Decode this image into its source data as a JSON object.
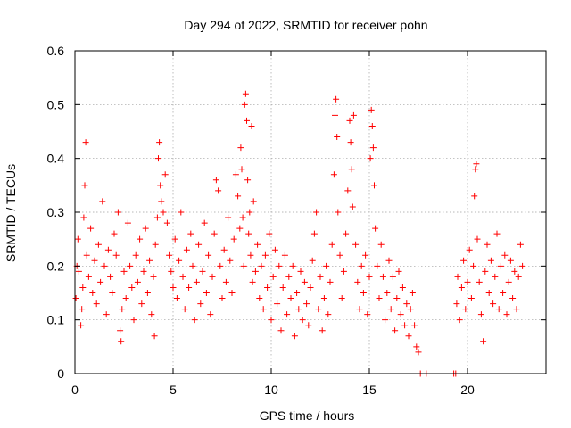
{
  "chart_data": {
    "type": "scatter",
    "title": "Day 294 of 2022, SRMTID for receiver pohn",
    "xlabel": "GPS time / hours",
    "ylabel": "SRMTID / TECUs",
    "xlim": [
      0,
      24
    ],
    "ylim": [
      0,
      0.6
    ],
    "x_ticks": [
      0,
      5,
      10,
      15,
      20
    ],
    "x_tick_labels": [
      "0",
      "5",
      "10",
      "15",
      "20"
    ],
    "y_ticks": [
      0,
      0.1,
      0.2,
      0.3,
      0.4,
      0.5,
      0.6
    ],
    "y_tick_labels": [
      "0",
      "0.1",
      "0.2",
      "0.3",
      "0.4",
      "0.5",
      "0.6"
    ],
    "grid": true,
    "legend": "none",
    "marker": "+",
    "color": "#ff0000",
    "series": [
      {
        "name": "SRMTID",
        "points": [
          [
            0.05,
            0.14
          ],
          [
            0.1,
            0.2
          ],
          [
            0.15,
            0.25
          ],
          [
            0.2,
            0.19
          ],
          [
            0.3,
            0.09
          ],
          [
            0.35,
            0.12
          ],
          [
            0.4,
            0.16
          ],
          [
            0.45,
            0.29
          ],
          [
            0.5,
            0.35
          ],
          [
            0.55,
            0.43
          ],
          [
            0.6,
            0.22
          ],
          [
            0.7,
            0.18
          ],
          [
            0.8,
            0.27
          ],
          [
            0.9,
            0.15
          ],
          [
            1.0,
            0.21
          ],
          [
            1.1,
            0.13
          ],
          [
            1.2,
            0.24
          ],
          [
            1.3,
            0.17
          ],
          [
            1.4,
            0.32
          ],
          [
            1.5,
            0.2
          ],
          [
            1.6,
            0.11
          ],
          [
            1.7,
            0.23
          ],
          [
            1.8,
            0.18
          ],
          [
            1.9,
            0.15
          ],
          [
            2.0,
            0.26
          ],
          [
            2.1,
            0.22
          ],
          [
            2.2,
            0.3
          ],
          [
            2.3,
            0.08
          ],
          [
            2.35,
            0.06
          ],
          [
            2.4,
            0.12
          ],
          [
            2.5,
            0.19
          ],
          [
            2.6,
            0.14
          ],
          [
            2.7,
            0.28
          ],
          [
            2.8,
            0.2
          ],
          [
            2.9,
            0.16
          ],
          [
            3.0,
            0.1
          ],
          [
            3.1,
            0.22
          ],
          [
            3.2,
            0.17
          ],
          [
            3.3,
            0.25
          ],
          [
            3.4,
            0.13
          ],
          [
            3.5,
            0.19
          ],
          [
            3.6,
            0.27
          ],
          [
            3.7,
            0.15
          ],
          [
            3.8,
            0.21
          ],
          [
            3.9,
            0.11
          ],
          [
            4.0,
            0.18
          ],
          [
            4.05,
            0.07
          ],
          [
            4.1,
            0.24
          ],
          [
            4.2,
            0.29
          ],
          [
            4.25,
            0.4
          ],
          [
            4.3,
            0.43
          ],
          [
            4.35,
            0.35
          ],
          [
            4.4,
            0.32
          ],
          [
            4.5,
            0.3
          ],
          [
            4.6,
            0.37
          ],
          [
            4.7,
            0.28
          ],
          [
            4.8,
            0.22
          ],
          [
            4.9,
            0.19
          ],
          [
            5.0,
            0.16
          ],
          [
            5.1,
            0.25
          ],
          [
            5.2,
            0.14
          ],
          [
            5.3,
            0.21
          ],
          [
            5.4,
            0.3
          ],
          [
            5.5,
            0.18
          ],
          [
            5.6,
            0.12
          ],
          [
            5.7,
            0.23
          ],
          [
            5.8,
            0.16
          ],
          [
            5.9,
            0.26
          ],
          [
            6.0,
            0.2
          ],
          [
            6.1,
            0.1
          ],
          [
            6.2,
            0.17
          ],
          [
            6.3,
            0.24
          ],
          [
            6.4,
            0.13
          ],
          [
            6.5,
            0.19
          ],
          [
            6.6,
            0.28
          ],
          [
            6.7,
            0.15
          ],
          [
            6.8,
            0.22
          ],
          [
            6.9,
            0.11
          ],
          [
            7.0,
            0.18
          ],
          [
            7.1,
            0.26
          ],
          [
            7.2,
            0.36
          ],
          [
            7.3,
            0.34
          ],
          [
            7.4,
            0.2
          ],
          [
            7.5,
            0.14
          ],
          [
            7.6,
            0.23
          ],
          [
            7.7,
            0.17
          ],
          [
            7.8,
            0.29
          ],
          [
            7.9,
            0.21
          ],
          [
            8.0,
            0.15
          ],
          [
            8.1,
            0.25
          ],
          [
            8.2,
            0.37
          ],
          [
            8.3,
            0.33
          ],
          [
            8.4,
            0.27
          ],
          [
            8.45,
            0.42
          ],
          [
            8.5,
            0.38
          ],
          [
            8.55,
            0.29
          ],
          [
            8.6,
            0.2
          ],
          [
            8.65,
            0.5
          ],
          [
            8.7,
            0.52
          ],
          [
            8.75,
            0.47
          ],
          [
            8.8,
            0.36
          ],
          [
            8.85,
            0.26
          ],
          [
            8.9,
            0.3
          ],
          [
            8.95,
            0.22
          ],
          [
            9.0,
            0.46
          ],
          [
            9.05,
            0.17
          ],
          [
            9.1,
            0.32
          ],
          [
            9.2,
            0.19
          ],
          [
            9.3,
            0.24
          ],
          [
            9.4,
            0.14
          ],
          [
            9.5,
            0.2
          ],
          [
            9.6,
            0.12
          ],
          [
            9.7,
            0.22
          ],
          [
            9.8,
            0.16
          ],
          [
            9.9,
            0.26
          ],
          [
            10.0,
            0.1
          ],
          [
            10.1,
            0.18
          ],
          [
            10.2,
            0.23
          ],
          [
            10.3,
            0.13
          ],
          [
            10.4,
            0.2
          ],
          [
            10.5,
            0.08
          ],
          [
            10.6,
            0.16
          ],
          [
            10.7,
            0.22
          ],
          [
            10.8,
            0.11
          ],
          [
            10.9,
            0.18
          ],
          [
            11.0,
            0.14
          ],
          [
            11.1,
            0.2
          ],
          [
            11.2,
            0.07
          ],
          [
            11.3,
            0.15
          ],
          [
            11.4,
            0.12
          ],
          [
            11.5,
            0.19
          ],
          [
            11.6,
            0.1
          ],
          [
            11.7,
            0.17
          ],
          [
            11.8,
            0.13
          ],
          [
            11.9,
            0.09
          ],
          [
            12.0,
            0.16
          ],
          [
            12.1,
            0.21
          ],
          [
            12.2,
            0.26
          ],
          [
            12.3,
            0.3
          ],
          [
            12.4,
            0.12
          ],
          [
            12.5,
            0.18
          ],
          [
            12.6,
            0.08
          ],
          [
            12.7,
            0.14
          ],
          [
            12.8,
            0.2
          ],
          [
            12.9,
            0.11
          ],
          [
            13.0,
            0.17
          ],
          [
            13.1,
            0.24
          ],
          [
            13.2,
            0.37
          ],
          [
            13.25,
            0.48
          ],
          [
            13.3,
            0.51
          ],
          [
            13.35,
            0.44
          ],
          [
            13.4,
            0.3
          ],
          [
            13.5,
            0.22
          ],
          [
            13.6,
            0.14
          ],
          [
            13.7,
            0.19
          ],
          [
            13.8,
            0.26
          ],
          [
            13.9,
            0.34
          ],
          [
            14.0,
            0.47
          ],
          [
            14.05,
            0.43
          ],
          [
            14.1,
            0.38
          ],
          [
            14.15,
            0.31
          ],
          [
            14.2,
            0.48
          ],
          [
            14.3,
            0.24
          ],
          [
            14.4,
            0.17
          ],
          [
            14.5,
            0.12
          ],
          [
            14.6,
            0.2
          ],
          [
            14.7,
            0.15
          ],
          [
            14.8,
            0.22
          ],
          [
            14.9,
            0.11
          ],
          [
            15.0,
            0.18
          ],
          [
            15.05,
            0.4
          ],
          [
            15.1,
            0.49
          ],
          [
            15.15,
            0.46
          ],
          [
            15.2,
            0.42
          ],
          [
            15.25,
            0.35
          ],
          [
            15.3,
            0.27
          ],
          [
            15.4,
            0.2
          ],
          [
            15.5,
            0.14
          ],
          [
            15.6,
            0.24
          ],
          [
            15.7,
            0.18
          ],
          [
            15.8,
            0.1
          ],
          [
            15.9,
            0.15
          ],
          [
            16.0,
            0.21
          ],
          [
            16.1,
            0.12
          ],
          [
            16.2,
            0.18
          ],
          [
            16.3,
            0.08
          ],
          [
            16.4,
            0.14
          ],
          [
            16.5,
            0.19
          ],
          [
            16.6,
            0.11
          ],
          [
            16.7,
            0.16
          ],
          [
            16.8,
            0.09
          ],
          [
            16.9,
            0.13
          ],
          [
            17.0,
            0.07
          ],
          [
            17.1,
            0.12
          ],
          [
            17.2,
            0.15
          ],
          [
            17.3,
            0.09
          ],
          [
            17.4,
            0.05
          ],
          [
            17.5,
            0.04
          ],
          [
            17.6,
            0.0
          ],
          [
            17.9,
            0.0
          ],
          [
            19.3,
            0.0
          ],
          [
            19.4,
            0.0
          ],
          [
            19.45,
            0.13
          ],
          [
            19.5,
            0.18
          ],
          [
            19.6,
            0.1
          ],
          [
            19.7,
            0.16
          ],
          [
            19.8,
            0.21
          ],
          [
            19.9,
            0.12
          ],
          [
            20.0,
            0.17
          ],
          [
            20.1,
            0.23
          ],
          [
            20.2,
            0.14
          ],
          [
            20.3,
            0.2
          ],
          [
            20.35,
            0.33
          ],
          [
            20.4,
            0.38
          ],
          [
            20.45,
            0.39
          ],
          [
            20.5,
            0.25
          ],
          [
            20.6,
            0.17
          ],
          [
            20.7,
            0.11
          ],
          [
            20.8,
            0.06
          ],
          [
            20.9,
            0.19
          ],
          [
            21.0,
            0.24
          ],
          [
            21.1,
            0.15
          ],
          [
            21.2,
            0.21
          ],
          [
            21.3,
            0.13
          ],
          [
            21.4,
            0.18
          ],
          [
            21.5,
            0.26
          ],
          [
            21.6,
            0.12
          ],
          [
            21.7,
            0.2
          ],
          [
            21.8,
            0.15
          ],
          [
            21.9,
            0.22
          ],
          [
            22.0,
            0.11
          ],
          [
            22.1,
            0.17
          ],
          [
            22.2,
            0.21
          ],
          [
            22.3,
            0.14
          ],
          [
            22.4,
            0.19
          ],
          [
            22.5,
            0.12
          ],
          [
            22.6,
            0.18
          ],
          [
            22.7,
            0.24
          ],
          [
            22.8,
            0.2
          ]
        ]
      }
    ]
  }
}
